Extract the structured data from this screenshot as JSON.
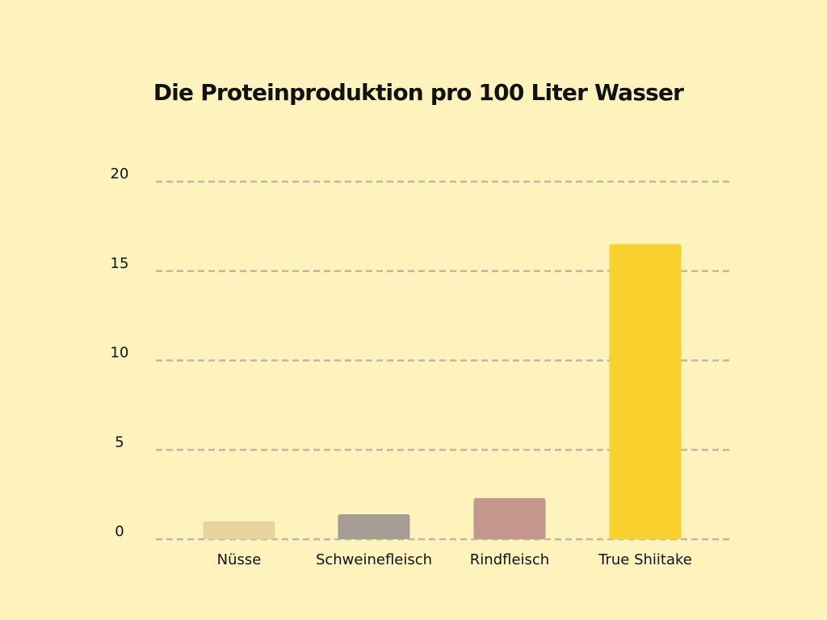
{
  "colors": {
    "background": "#fef3bc",
    "text": "#111111",
    "grid": "#bdb9a3"
  },
  "chart_data": {
    "type": "bar",
    "title": "Die Proteinproduktion pro 100 Liter Wasser",
    "xlabel": "",
    "ylabel": "",
    "ylim": [
      0,
      20
    ],
    "yticks": [
      0,
      5,
      10,
      15,
      20
    ],
    "ytick_labels": [
      "0",
      "5",
      "10",
      "15",
      "20"
    ],
    "grid": true,
    "grid_style": "dashed",
    "legend": "none",
    "categories": [
      "Nüsse",
      "Schweinefleisch",
      "Rindfleisch",
      "True Shiitake"
    ],
    "values": [
      1.0,
      1.4,
      2.3,
      16.5
    ],
    "bar_colors": [
      "#e9d49e",
      "#a69d94",
      "#c3978d",
      "#f9d12e"
    ]
  }
}
